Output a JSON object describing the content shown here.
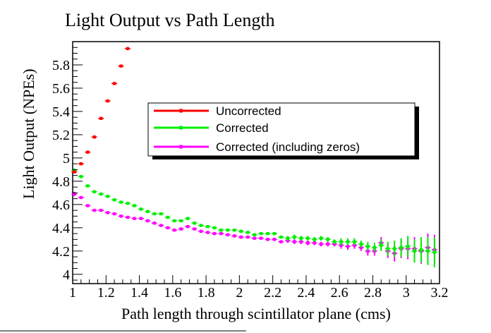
{
  "chart_data": {
    "type": "scatter",
    "title": "Light Output vs Path Length",
    "xlabel": "Path length through scintillator plane (cms)",
    "ylabel": "Light Output (NPEs)",
    "xlim": [
      1.0,
      3.2
    ],
    "ylim": [
      3.92,
      6.0
    ],
    "x_ticks": [
      "1",
      "1.2",
      "1.4",
      "1.6",
      "1.8",
      "2",
      "2.2",
      "2.4",
      "2.6",
      "2.8",
      "3",
      "3.2"
    ],
    "y_ticks": [
      "4",
      "4.2",
      "4.4",
      "4.6",
      "4.8",
      "5",
      "5.2",
      "5.4",
      "5.6",
      "5.8"
    ],
    "grid": false,
    "legend_position": "center-right",
    "series": [
      {
        "name": "Uncorrected",
        "color": "#ff0000",
        "x": [
          1.01,
          1.05,
          1.09,
          1.13,
          1.17,
          1.21,
          1.25,
          1.29,
          1.33
        ],
        "y": [
          4.88,
          4.95,
          5.05,
          5.18,
          5.34,
          5.49,
          5.64,
          5.79,
          5.94
        ],
        "err": [
          0.01,
          0.01,
          0.01,
          0.01,
          0.01,
          0.01,
          0.01,
          0.01,
          0.01
        ]
      },
      {
        "name": "Corrected",
        "color": "#00ee00",
        "x": [
          1.01,
          1.05,
          1.09,
          1.13,
          1.17,
          1.21,
          1.25,
          1.29,
          1.33,
          1.37,
          1.41,
          1.45,
          1.49,
          1.53,
          1.57,
          1.61,
          1.65,
          1.69,
          1.73,
          1.77,
          1.81,
          1.85,
          1.89,
          1.93,
          1.97,
          2.01,
          2.05,
          2.09,
          2.13,
          2.17,
          2.21,
          2.25,
          2.29,
          2.33,
          2.37,
          2.41,
          2.45,
          2.49,
          2.53,
          2.57,
          2.61,
          2.65,
          2.69,
          2.73,
          2.77,
          2.81,
          2.85,
          2.89,
          2.93,
          2.97,
          3.01,
          3.05,
          3.09,
          3.13,
          3.17
        ],
        "y": [
          4.89,
          4.84,
          4.76,
          4.71,
          4.69,
          4.67,
          4.64,
          4.62,
          4.61,
          4.59,
          4.56,
          4.54,
          4.52,
          4.52,
          4.49,
          4.46,
          4.46,
          4.48,
          4.44,
          4.42,
          4.41,
          4.4,
          4.38,
          4.38,
          4.38,
          4.37,
          4.36,
          4.34,
          4.35,
          4.35,
          4.35,
          4.32,
          4.31,
          4.32,
          4.31,
          4.31,
          4.3,
          4.31,
          4.3,
          4.28,
          4.28,
          4.28,
          4.28,
          4.26,
          4.24,
          4.23,
          4.25,
          4.22,
          4.22,
          4.23,
          4.24,
          4.2,
          4.21,
          4.2,
          4.19
        ],
        "err": [
          0.02,
          0.01,
          0.01,
          0.01,
          0.01,
          0.01,
          0.01,
          0.01,
          0.01,
          0.01,
          0.01,
          0.01,
          0.01,
          0.01,
          0.01,
          0.01,
          0.01,
          0.01,
          0.01,
          0.01,
          0.01,
          0.01,
          0.01,
          0.01,
          0.01,
          0.01,
          0.01,
          0.01,
          0.01,
          0.01,
          0.01,
          0.01,
          0.02,
          0.02,
          0.02,
          0.02,
          0.02,
          0.02,
          0.02,
          0.02,
          0.03,
          0.03,
          0.03,
          0.03,
          0.04,
          0.04,
          0.05,
          0.06,
          0.07,
          0.08,
          0.09,
          0.1,
          0.11,
          0.12,
          0.13
        ]
      },
      {
        "name": "Corrected (including zeros)",
        "color": "#ff00ff",
        "x": [
          1.01,
          1.05,
          1.09,
          1.13,
          1.17,
          1.21,
          1.25,
          1.29,
          1.33,
          1.37,
          1.41,
          1.45,
          1.49,
          1.53,
          1.57,
          1.61,
          1.65,
          1.69,
          1.73,
          1.77,
          1.81,
          1.85,
          1.89,
          1.93,
          1.97,
          2.01,
          2.05,
          2.09,
          2.13,
          2.17,
          2.21,
          2.25,
          2.29,
          2.33,
          2.37,
          2.41,
          2.45,
          2.49,
          2.53,
          2.57,
          2.61,
          2.65,
          2.69,
          2.73,
          2.77,
          2.81,
          2.85,
          2.89,
          2.93,
          2.97,
          3.01,
          3.05,
          3.09,
          3.13,
          3.17
        ],
        "y": [
          4.69,
          4.66,
          4.59,
          4.55,
          4.55,
          4.53,
          4.52,
          4.5,
          4.49,
          4.48,
          4.48,
          4.46,
          4.44,
          4.42,
          4.4,
          4.38,
          4.39,
          4.41,
          4.39,
          4.37,
          4.36,
          4.35,
          4.35,
          4.34,
          4.33,
          4.32,
          4.32,
          4.31,
          4.31,
          4.3,
          4.3,
          4.28,
          4.29,
          4.28,
          4.28,
          4.27,
          4.27,
          4.26,
          4.26,
          4.26,
          4.25,
          4.24,
          4.25,
          4.23,
          4.2,
          4.2,
          4.27,
          4.2,
          4.18,
          4.22,
          4.22,
          4.22,
          4.2,
          4.23,
          4.21
        ],
        "err": [
          0.02,
          0.01,
          0.01,
          0.01,
          0.01,
          0.01,
          0.01,
          0.01,
          0.01,
          0.01,
          0.01,
          0.01,
          0.01,
          0.01,
          0.01,
          0.01,
          0.01,
          0.01,
          0.01,
          0.01,
          0.01,
          0.01,
          0.01,
          0.01,
          0.01,
          0.01,
          0.01,
          0.01,
          0.01,
          0.01,
          0.01,
          0.01,
          0.02,
          0.02,
          0.02,
          0.02,
          0.02,
          0.02,
          0.02,
          0.02,
          0.03,
          0.03,
          0.03,
          0.03,
          0.04,
          0.04,
          0.05,
          0.06,
          0.07,
          0.08,
          0.09,
          0.1,
          0.11,
          0.12,
          0.13
        ]
      }
    ]
  }
}
